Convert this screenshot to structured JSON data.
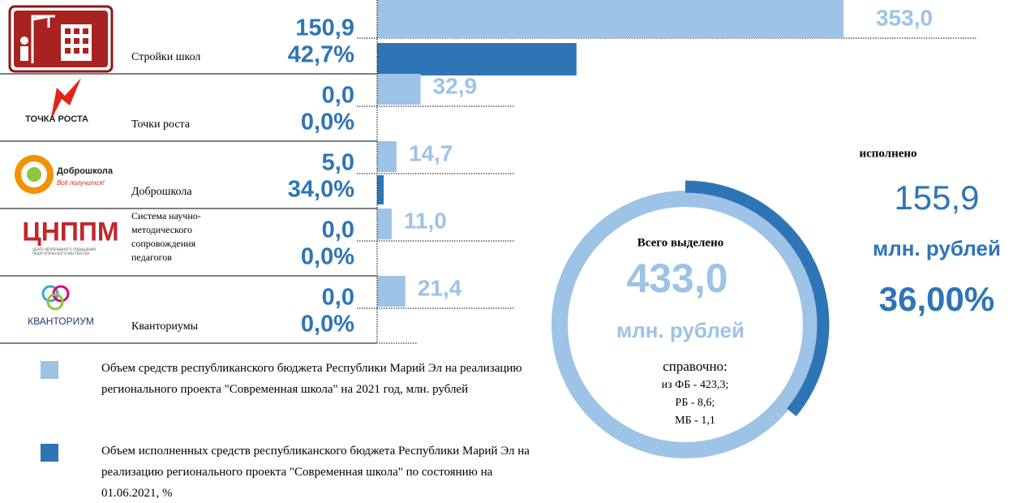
{
  "chart_data": [
    {
      "type": "bar",
      "orientation": "horizontal",
      "categories": [
        "Стройки школ",
        "Точки роста",
        "Доброшкола",
        "Система научно-методического сопровождения педагогов",
        "Кванториумы"
      ],
      "series": [
        {
          "name": "Объем средств республиканского бюджета Республики Марий Эл на реализацию регионального проекта \"Современная школа\" на 2021 год, млн. рублей",
          "color": "#9dc3e6",
          "values": [
            353.0,
            32.9,
            14.7,
            11.0,
            21.4
          ],
          "value_labels": [
            "353,0",
            "32,9",
            "14,7",
            "11,0",
            "21,4"
          ]
        },
        {
          "name": "Объем исполненных средств республиканского бюджета Республики Марий Эл на реализацию регионального проекта \"Современная школа\" по состоянию на 01.06.2021, %",
          "color": "#2e75b6",
          "values": [
            150.9,
            0.0,
            5.0,
            0.0,
            0.0
          ],
          "value_labels": [
            "150,9",
            "0,0",
            "5,0",
            "0,0",
            "0,0"
          ]
        }
      ],
      "percents": {
        "values": [
          42.7,
          0.0,
          34.0,
          0.0,
          0.0
        ],
        "value_labels": [
          "42,7%",
          "0,0%",
          "34,0%",
          "0,0%",
          "0,0%"
        ]
      },
      "xlim": [
        0,
        353
      ]
    },
    {
      "type": "donut",
      "title": "Всего выделено",
      "total": 433.0,
      "total_label": "433,0",
      "unit": "млн. рублей",
      "note_title": "справочно:",
      "notes": [
        "из ФБ - 423,3;",
        "РБ - 8,6;",
        "МБ - 1,1"
      ],
      "executed_title": "исполнено",
      "executed": 155.9,
      "executed_label": "155,9",
      "executed_unit": "млн. рублей",
      "percent": 36.0,
      "percent_label": "36,00%",
      "color": "#9dc3e6",
      "executed_color": "#2e75b6"
    }
  ],
  "logos": [
    {
      "text": "ТОЧКА РОСТА"
    },
    {
      "text": "Доброшкола",
      "slogan": "Всё получится!"
    },
    {
      "text": "ЦНППМ",
      "subtitle": "ЦЕНТР НЕПРЕРЫВНОГО ПОВЫШЕНИЯ ПЕДАГОГИЧЕСКОГО МАСТЕРСТВА"
    },
    {
      "text": "КВАНТОРИУМ"
    }
  ]
}
